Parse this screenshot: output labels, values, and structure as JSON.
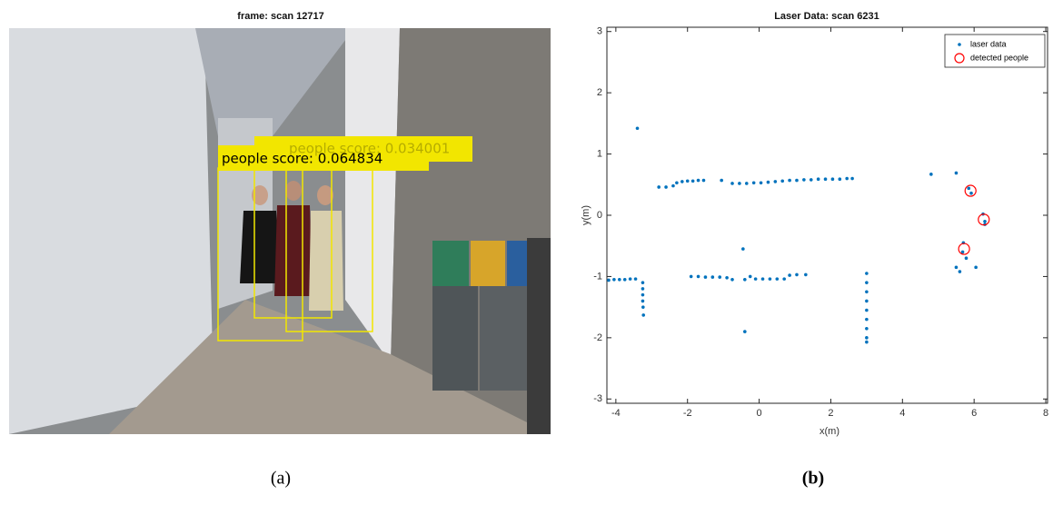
{
  "photo": {
    "title": "frame: scan 12717",
    "labels": [
      "people score: 0.034001",
      "people score: 0.064834"
    ],
    "caption": "(a)"
  },
  "chart_data": {
    "type": "scatter",
    "title": "Laser Data: scan 6231",
    "xlabel": "x(m)",
    "ylabel": "y(m)",
    "caption": "(b)",
    "xlim": [
      -4.25,
      8.05
    ],
    "ylim": [
      -3.07,
      3.07
    ],
    "xticks": [
      -4,
      -2,
      0,
      2,
      4,
      6,
      8
    ],
    "yticks": [
      -3,
      -2,
      -1,
      0,
      1,
      2,
      3
    ],
    "legend": "top-right",
    "series": [
      {
        "name": "laser data",
        "color": "#0072bd",
        "marker": "dot",
        "x": [
          -3.4,
          -2.8,
          -2.6,
          -2.4,
          -2.3,
          -2.15,
          -2.0,
          -1.85,
          -1.7,
          -1.55,
          -1.05,
          -0.75,
          -0.55,
          -0.35,
          -0.15,
          0.05,
          0.25,
          0.45,
          0.65,
          0.85,
          1.05,
          1.25,
          1.45,
          1.65,
          1.85,
          2.05,
          2.25,
          2.45,
          2.6,
          4.8,
          5.5,
          5.85,
          5.92,
          6.25,
          6.3,
          6.3,
          5.7,
          5.68,
          5.78,
          5.5,
          5.6,
          6.05,
          -4.2,
          -4.05,
          -3.9,
          -3.75,
          -3.6,
          -3.45,
          -3.25,
          -3.25,
          -3.25,
          -3.25,
          -3.24,
          -3.23,
          -1.9,
          -1.7,
          -1.5,
          -1.3,
          -1.1,
          -0.9,
          -0.75,
          -0.45,
          -0.4,
          -0.25,
          -0.1,
          0.1,
          0.3,
          0.5,
          0.7,
          0.85,
          1.05,
          1.3,
          -0.4,
          3.0,
          3.0,
          3.0,
          3.0,
          3.0,
          3.0,
          3.0,
          3.0,
          3.0
        ],
        "values": [
          1.42,
          0.46,
          0.46,
          0.48,
          0.53,
          0.55,
          0.56,
          0.56,
          0.57,
          0.57,
          0.57,
          0.52,
          0.52,
          0.52,
          0.53,
          0.53,
          0.54,
          0.55,
          0.56,
          0.57,
          0.57,
          0.58,
          0.58,
          0.59,
          0.59,
          0.59,
          0.59,
          0.6,
          0.6,
          0.67,
          0.69,
          0.44,
          0.36,
          0.02,
          -0.1,
          -0.15,
          -0.45,
          -0.6,
          -0.7,
          -0.85,
          -0.92,
          -0.85,
          -1.06,
          -1.05,
          -1.05,
          -1.05,
          -1.04,
          -1.04,
          -1.1,
          -1.2,
          -1.3,
          -1.4,
          -1.5,
          -1.63,
          -1.0,
          -1.0,
          -1.01,
          -1.01,
          -1.01,
          -1.02,
          -1.05,
          -0.55,
          -1.05,
          -1.0,
          -1.04,
          -1.04,
          -1.04,
          -1.04,
          -1.04,
          -0.98,
          -0.97,
          -0.97,
          -1.9,
          -0.95,
          -1.1,
          -1.25,
          -1.4,
          -1.55,
          -1.7,
          -1.85,
          -2.0,
          -2.07
        ]
      },
      {
        "name": "detected people",
        "color": "#ff0000",
        "marker": "circle",
        "x": [
          5.9,
          6.27,
          5.72
        ],
        "values": [
          0.4,
          -0.07,
          -0.55
        ]
      }
    ]
  }
}
